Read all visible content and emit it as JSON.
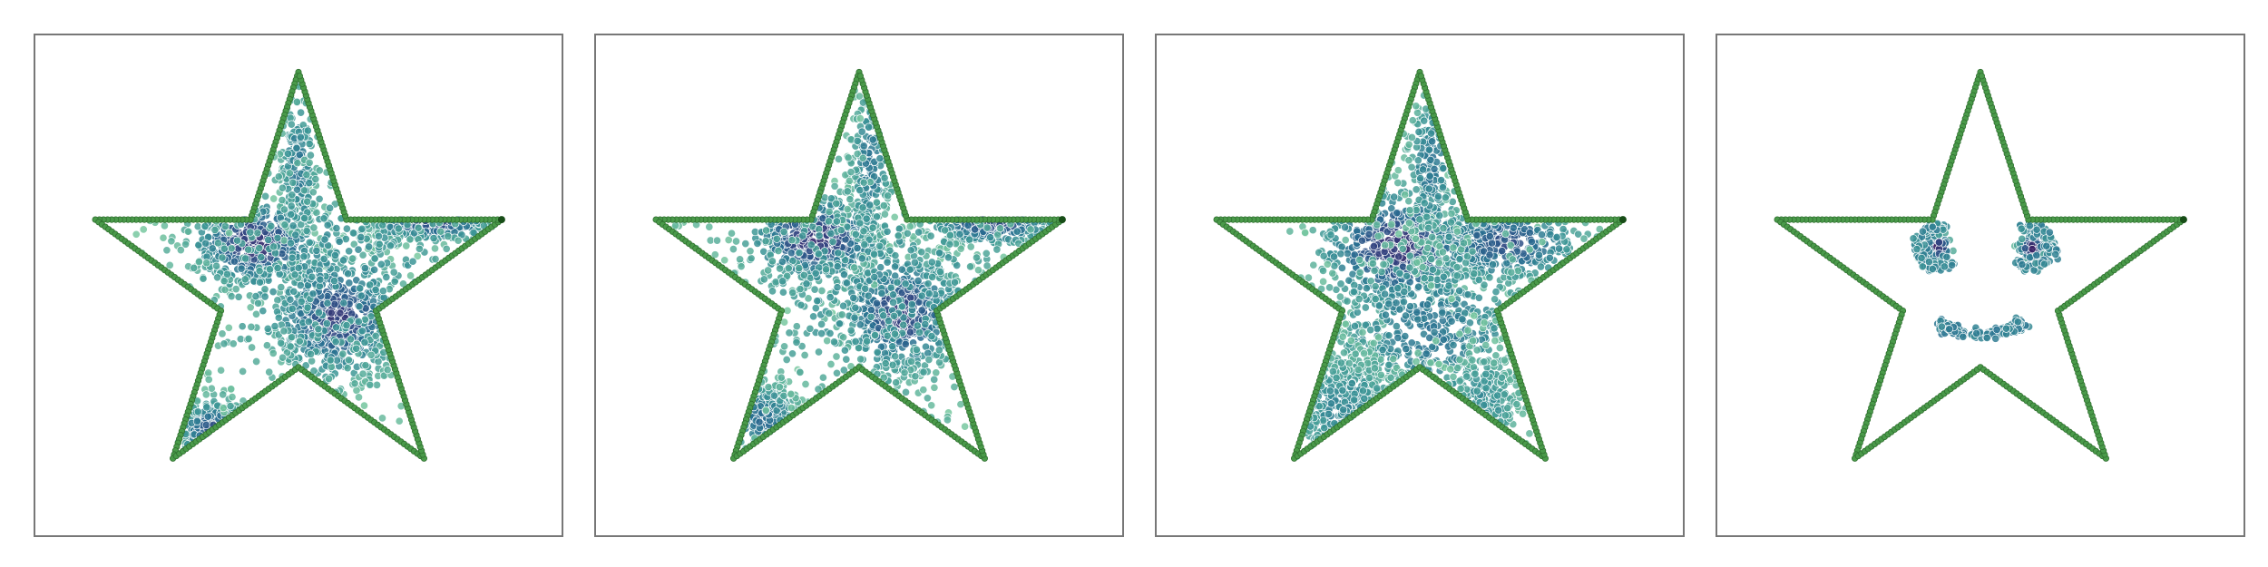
{
  "chart_data": [
    {
      "type": "scatter",
      "title": "",
      "xlabel": "",
      "ylabel": "",
      "grid": false,
      "legend": "none",
      "xlim": [
        -1.15,
        1.15
      ],
      "ylim": [
        -1.15,
        1.05
      ],
      "outline": {
        "shape": "star",
        "points": 5,
        "outer_radius": 1.0,
        "inner_radius": 0.382,
        "color": "#4a9a4a"
      },
      "series": [
        {
          "clusters": [
            {
              "cx": -0.2,
              "cy": 0.2,
              "sx": 0.16,
              "sy": 0.11,
              "n": 460,
              "density": 0.9
            },
            {
              "cx": 0.18,
              "cy": -0.15,
              "sx": 0.16,
              "sy": 0.15,
              "n": 520,
              "density": 0.85
            },
            {
              "cx": 0.62,
              "cy": 0.3,
              "sx": 0.16,
              "sy": 0.05,
              "n": 260,
              "density": 0.8
            },
            {
              "cx": -0.4,
              "cy": -0.68,
              "sx": 0.09,
              "sy": 0.08,
              "n": 200,
              "density": 0.75
            },
            {
              "cx": 0.0,
              "cy": 0.55,
              "sx": 0.05,
              "sy": 0.2,
              "n": 180,
              "density": 0.55
            },
            {
              "cx": 0.15,
              "cy": 0.05,
              "sx": 0.45,
              "sy": 0.35,
              "n": 380,
              "density": 0.4
            }
          ]
        }
      ]
    },
    {
      "type": "scatter",
      "title": "",
      "xlabel": "",
      "ylabel": "",
      "grid": false,
      "legend": "none",
      "xlim": [
        -1.15,
        1.15
      ],
      "ylim": [
        -1.15,
        1.05
      ],
      "outline": {
        "shape": "star",
        "points": 5,
        "outer_radius": 1.0,
        "inner_radius": 0.382,
        "color": "#4a9a4a"
      },
      "series": [
        {
          "clusters": [
            {
              "cx": -0.2,
              "cy": 0.22,
              "sx": 0.17,
              "sy": 0.11,
              "n": 480,
              "density": 0.9
            },
            {
              "cx": 0.2,
              "cy": -0.13,
              "sx": 0.15,
              "sy": 0.15,
              "n": 480,
              "density": 0.85
            },
            {
              "cx": 0.62,
              "cy": 0.3,
              "sx": 0.17,
              "sy": 0.06,
              "n": 260,
              "density": 0.8
            },
            {
              "cx": -0.45,
              "cy": -0.62,
              "sx": 0.1,
              "sy": 0.09,
              "n": 220,
              "density": 0.6
            },
            {
              "cx": 0.05,
              "cy": 0.55,
              "sx": 0.05,
              "sy": 0.22,
              "n": 200,
              "density": 0.55
            },
            {
              "cx": 0.1,
              "cy": 0.0,
              "sx": 0.45,
              "sy": 0.35,
              "n": 380,
              "density": 0.4
            }
          ]
        }
      ]
    },
    {
      "type": "scatter",
      "title": "",
      "xlabel": "",
      "ylabel": "",
      "grid": false,
      "legend": "none",
      "xlim": [
        -1.15,
        1.15
      ],
      "ylim": [
        -1.15,
        1.05
      ],
      "outline": {
        "shape": "star",
        "points": 5,
        "outer_radius": 1.0,
        "inner_radius": 0.382,
        "color": "#4a9a4a"
      },
      "series": [
        {
          "clusters": [
            {
              "cx": -0.1,
              "cy": 0.18,
              "sx": 0.2,
              "sy": 0.15,
              "n": 620,
              "density": 0.9
            },
            {
              "cx": 0.4,
              "cy": 0.2,
              "sx": 0.2,
              "sy": 0.1,
              "n": 360,
              "density": 0.75
            },
            {
              "cx": 0.05,
              "cy": -0.2,
              "sx": 0.28,
              "sy": 0.22,
              "n": 520,
              "density": 0.55
            },
            {
              "cx": -0.35,
              "cy": -0.6,
              "sx": 0.16,
              "sy": 0.17,
              "n": 320,
              "density": 0.45
            },
            {
              "cx": 0.3,
              "cy": -0.55,
              "sx": 0.1,
              "sy": 0.15,
              "n": 200,
              "density": 0.4
            },
            {
              "cx": 0.05,
              "cy": 0.55,
              "sx": 0.06,
              "sy": 0.2,
              "n": 170,
              "density": 0.55
            }
          ]
        }
      ]
    },
    {
      "type": "scatter",
      "title": "",
      "xlabel": "",
      "ylabel": "",
      "grid": false,
      "legend": "none",
      "xlim": [
        -1.15,
        1.15
      ],
      "ylim": [
        -1.15,
        1.05
      ],
      "outline": {
        "shape": "star",
        "points": 5,
        "outer_radius": 1.0,
        "inner_radius": 0.382,
        "color": "#4a9a4a"
      },
      "series": [
        {
          "clusters": [
            {
              "cx": -0.2,
              "cy": 0.18,
              "sx": 0.035,
              "sy": 0.035,
              "n": 90,
              "density": 0.95
            },
            {
              "cx": 0.24,
              "cy": 0.18,
              "sx": 0.035,
              "sy": 0.035,
              "n": 90,
              "density": 0.95
            }
          ],
          "rings": [
            {
              "cx": -0.2,
              "cy": 0.18,
              "r": 0.095,
              "from_deg": 60,
              "to_deg": 320,
              "n": 90,
              "density": 0.45
            },
            {
              "cx": 0.24,
              "cy": 0.18,
              "r": 0.095,
              "from_deg": -140,
              "to_deg": 120,
              "n": 90,
              "density": 0.45
            }
          ],
          "arcs": [
            {
              "cx": 0.0,
              "cy": -0.15,
              "rx": 0.2,
              "ry": 0.08,
              "from_deg": 195,
              "to_deg": 345,
              "n": 170,
              "density": 0.5
            }
          ]
        }
      ]
    }
  ]
}
